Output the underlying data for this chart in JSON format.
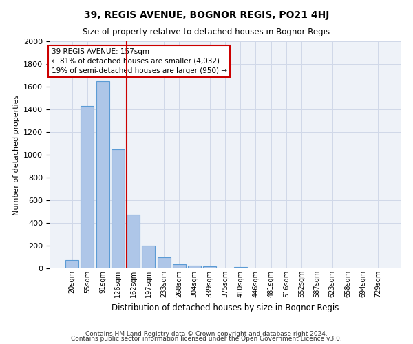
{
  "title": "39, REGIS AVENUE, BOGNOR REGIS, PO21 4HJ",
  "subtitle": "Size of property relative to detached houses in Bognor Regis",
  "xlabel": "Distribution of detached houses by size in Bognor Regis",
  "ylabel": "Number of detached properties",
  "footnote1": "Contains HM Land Registry data © Crown copyright and database right 2024.",
  "footnote2": "Contains public sector information licensed under the Open Government Licence v3.0.",
  "bar_labels": [
    "20sqm",
    "55sqm",
    "91sqm",
    "126sqm",
    "162sqm",
    "197sqm",
    "233sqm",
    "268sqm",
    "304sqm",
    "339sqm",
    "375sqm",
    "410sqm",
    "446sqm",
    "481sqm",
    "516sqm",
    "552sqm",
    "587sqm",
    "623sqm",
    "658sqm",
    "694sqm",
    "729sqm"
  ],
  "bar_values": [
    75,
    1430,
    1650,
    1050,
    475,
    200,
    100,
    35,
    25,
    20,
    0,
    15,
    0,
    0,
    0,
    0,
    0,
    0,
    0,
    0,
    0
  ],
  "bar_color": "#aec6e8",
  "bar_edge_color": "#5b9bd5",
  "vline_index": 4,
  "vline_color": "#cc0000",
  "ylim": [
    0,
    2000
  ],
  "yticks": [
    0,
    200,
    400,
    600,
    800,
    1000,
    1200,
    1400,
    1600,
    1800,
    2000
  ],
  "annotation_text": "39 REGIS AVENUE: 157sqm\n← 81% of detached houses are smaller (4,032)\n19% of semi-detached houses are larger (950) →",
  "annotation_box_color": "#ffffff",
  "annotation_border_color": "#cc0000",
  "grid_color": "#d0d8e8",
  "bg_color": "#eef2f8"
}
